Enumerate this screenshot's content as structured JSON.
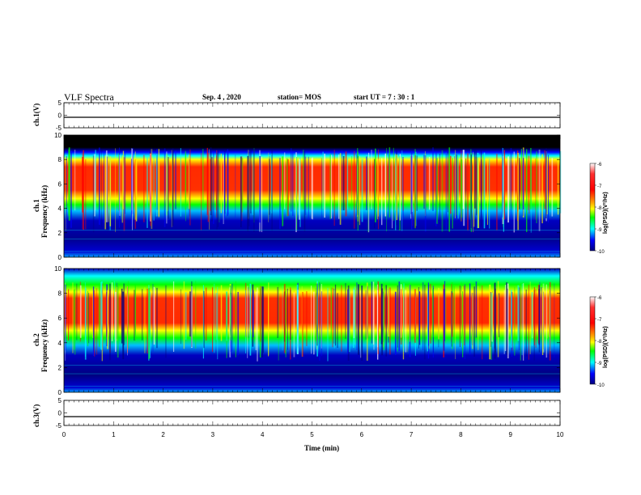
{
  "header": {
    "title": "VLF Spectra",
    "date": "Sep. 4 , 2020",
    "station": "station= MOS",
    "start_ut": "start UT =   7 : 30 : 1"
  },
  "panels": {
    "ch1_wave_label": "ch.1(V)",
    "ch1_spec_label_ch": "ch.1",
    "ch1_spec_label_freq": "Frequency (kHz)",
    "ch2_spec_label_ch": "ch.2",
    "ch2_spec_label_freq": "Frequency (kHz)",
    "ch3_wave_label": "ch.3(V)"
  },
  "colorbar": {
    "label": "log(PSD)(V²/Hz)",
    "ticks": [
      "-6",
      "-7",
      "-8",
      "-9",
      "-10"
    ]
  },
  "chart_data": [
    {
      "type": "line",
      "panel": "ch1-waveform",
      "ylabel": "ch.1(V)",
      "ylim": [
        -5,
        5
      ],
      "yticks": [
        "5",
        "0",
        "-5"
      ],
      "xlim": [
        0,
        10
      ],
      "value_level": -0.8
    },
    {
      "type": "heatmap",
      "panel": "ch1-spectrogram",
      "ylabel": "Frequency (kHz)",
      "ylim": [
        0,
        10
      ],
      "yticks": [
        "10",
        "8",
        "6",
        "4",
        "2",
        "0"
      ],
      "xlim": [
        0,
        10
      ],
      "colorscale": [
        "#ffffff",
        "#ff0000",
        "#ffa500",
        "#ffff00",
        "#00ff00",
        "#00ffff",
        "#0000ff",
        "#000080",
        "#000000"
      ],
      "clim": [
        -10,
        -6
      ],
      "intense_band_khz": [
        5,
        8
      ],
      "saturated_above_khz": 9
    },
    {
      "type": "heatmap",
      "panel": "ch2-spectrogram",
      "ylabel": "Frequency (kHz)",
      "ylim": [
        0,
        10
      ],
      "yticks": [
        "10",
        "8",
        "6",
        "4",
        "2",
        "0"
      ],
      "xlim": [
        0,
        10
      ],
      "colorscale": [
        "#ffffff",
        "#ff0000",
        "#ffa500",
        "#ffff00",
        "#00ff00",
        "#00ffff",
        "#0000ff",
        "#000080",
        "#000000"
      ],
      "clim": [
        -10,
        -6
      ],
      "intense_band_khz": [
        5.5,
        8
      ]
    },
    {
      "type": "line",
      "panel": "ch3-waveform",
      "ylabel": "ch.3(V)",
      "ylim": [
        -5,
        5
      ],
      "yticks": [
        "5",
        "0",
        "-5"
      ],
      "xlim": [
        0,
        10
      ],
      "value_level": -1.5
    }
  ],
  "xaxis": {
    "label": "Time (min)",
    "ticks": [
      "0",
      "1",
      "2",
      "3",
      "4",
      "5",
      "6",
      "7",
      "8",
      "9",
      "10"
    ]
  }
}
